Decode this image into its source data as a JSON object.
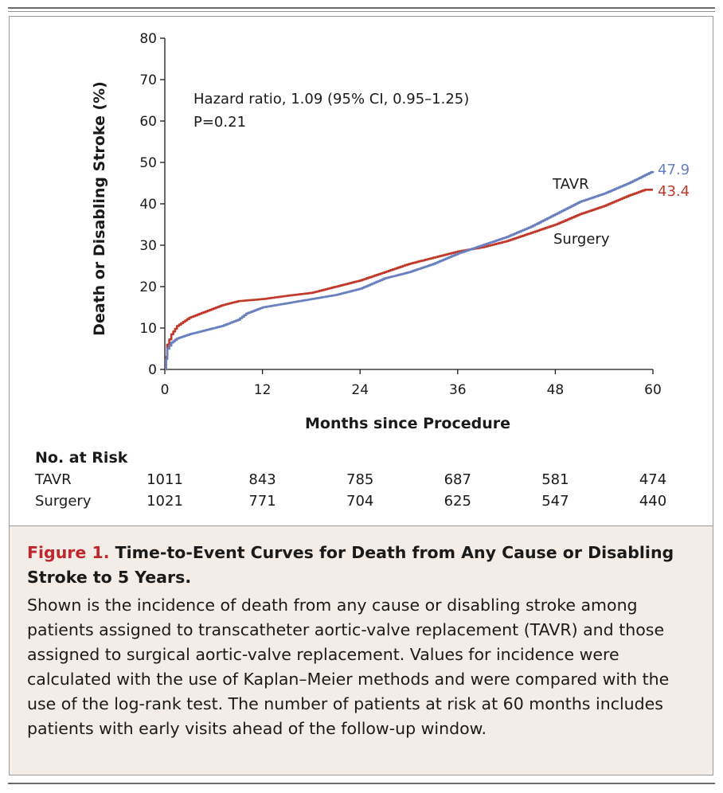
{
  "chart_data": {
    "type": "line",
    "xlabel": "Months since Procedure",
    "ylabel": "Death or Disabling Stroke (%)",
    "xlim": [
      0,
      60
    ],
    "ylim": [
      0,
      80
    ],
    "xticks": [
      "0",
      "12",
      "24",
      "36",
      "48",
      "60"
    ],
    "yticks": [
      "0",
      "10",
      "20",
      "30",
      "40",
      "50",
      "60",
      "70",
      "80"
    ],
    "annotation": {
      "line1": "Hazard ratio, 1.09 (95% CI, 0.95–1.25)",
      "line2": "P=0.21"
    },
    "series": [
      {
        "name": "TAVR",
        "color": "#6a7fbf",
        "end_label": "47.9",
        "x": [
          0,
          0.3,
          0.8,
          1.5,
          3,
          5,
          7,
          9,
          10,
          12,
          15,
          18,
          21,
          24,
          27,
          30,
          33,
          36,
          39,
          42,
          45,
          48,
          51,
          54,
          57,
          60
        ],
        "y": [
          0,
          5,
          6.5,
          7.5,
          8.5,
          9.5,
          10.5,
          12,
          13.5,
          15,
          16,
          17,
          18,
          19.5,
          22,
          23.5,
          25.5,
          28,
          30,
          32,
          34.5,
          37.5,
          40.5,
          42.5,
          45,
          47.9
        ]
      },
      {
        "name": "Surgery",
        "color": "#c0392b",
        "end_label": "43.4",
        "x": [
          0,
          0.3,
          0.8,
          1.5,
          3,
          5,
          7,
          9,
          12,
          15,
          18,
          21,
          24,
          27,
          30,
          33,
          36,
          39,
          42,
          45,
          48,
          51,
          54,
          57,
          59,
          60
        ],
        "y": [
          0,
          6,
          8.5,
          10.5,
          12.5,
          14,
          15.5,
          16.5,
          17,
          17.8,
          18.5,
          20,
          21.5,
          23.5,
          25.5,
          27,
          28.5,
          29.5,
          31,
          33,
          35,
          37.5,
          39.5,
          42,
          43.4,
          43.4
        ]
      }
    ]
  },
  "risk_table": {
    "title": "No. at Risk",
    "months": [
      0,
      12,
      24,
      36,
      48,
      60
    ],
    "rows": [
      {
        "label": "TAVR",
        "values": [
          "1011",
          "843",
          "785",
          "687",
          "581",
          "474"
        ]
      },
      {
        "label": "Surgery",
        "values": [
          "1021",
          "771",
          "704",
          "625",
          "547",
          "440"
        ]
      }
    ]
  },
  "caption": {
    "label": "Figure 1.",
    "title": "Time-to-Event Curves for Death from Any Cause or Disabling Stroke to 5 Years.",
    "body": "Shown is the incidence of death from any cause or disabling stroke among patients assigned to transcatheter aortic-valve replacement (TAVR) and those assigned to surgical aortic-valve replacement. Values for incidence were calculated with the use of Kaplan–Meier methods and were compared with the use of the log-rank test. The number of patients at risk at 60 months includes patients with early visits ahead of the follow-up window."
  }
}
